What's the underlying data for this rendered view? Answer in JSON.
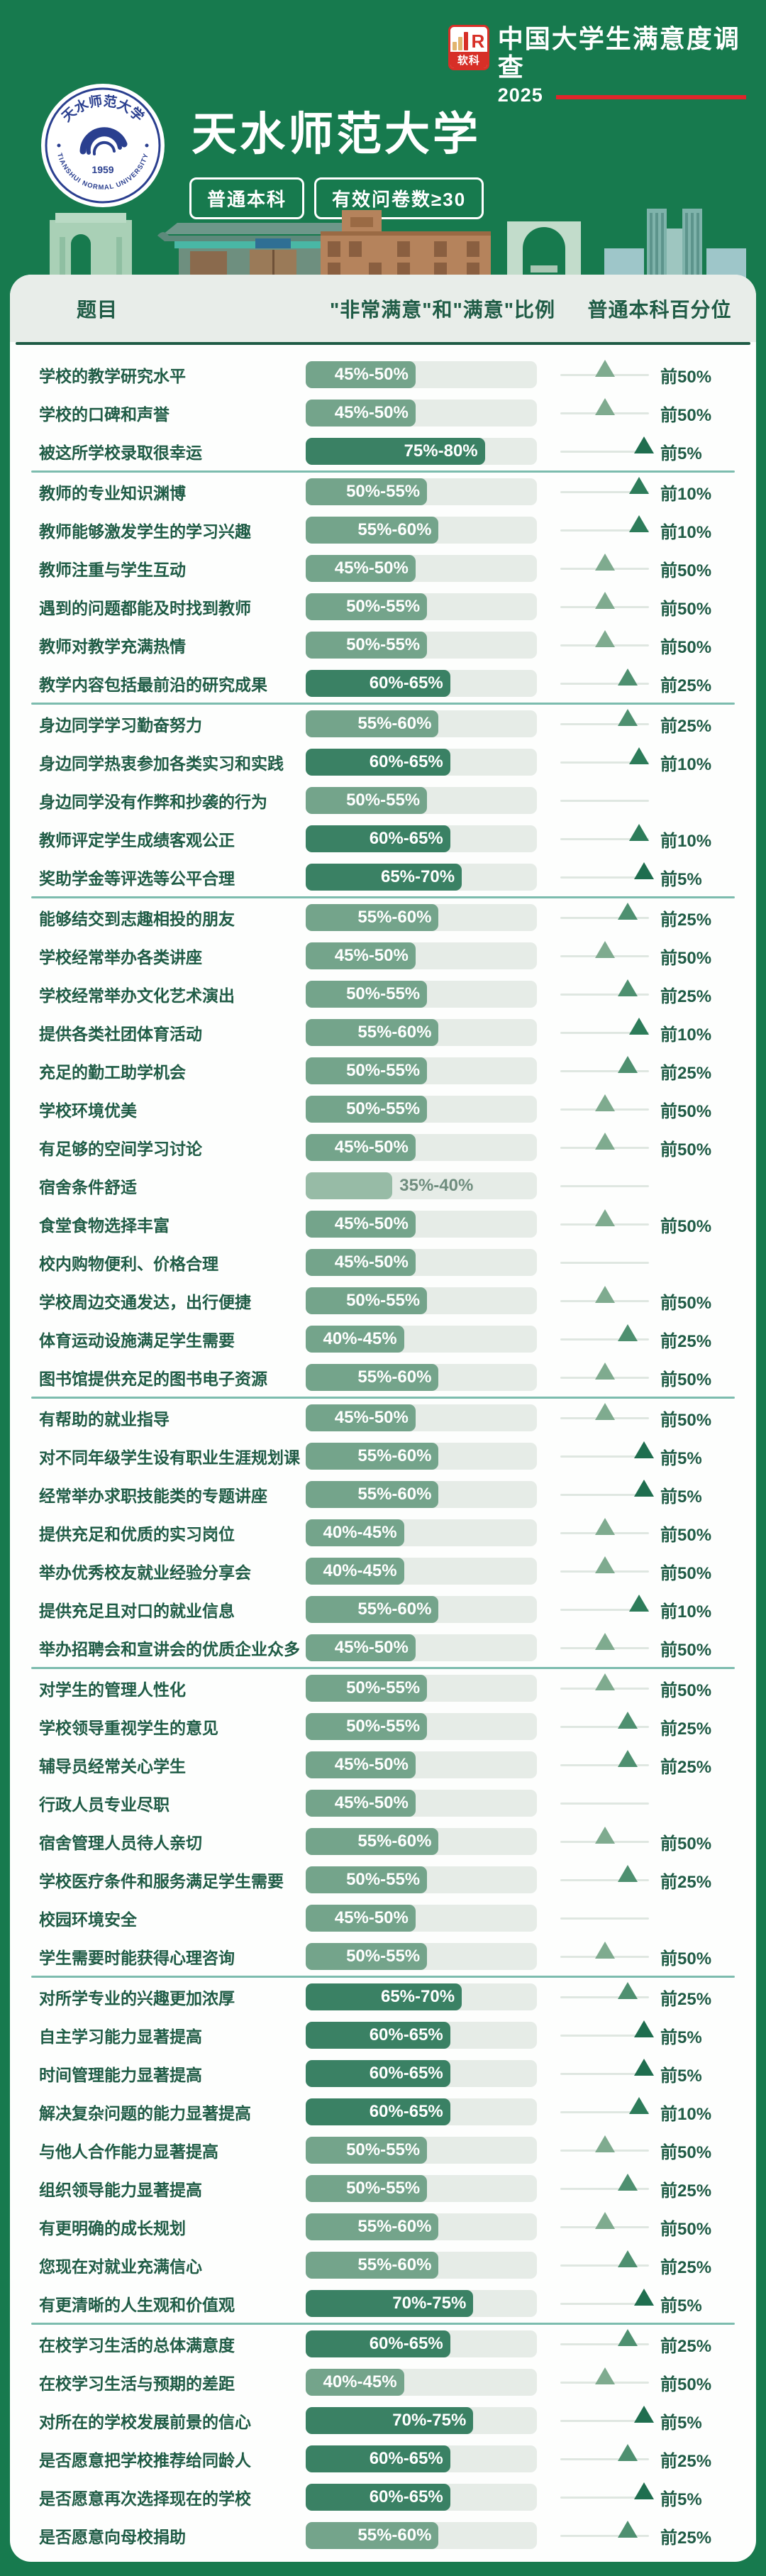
{
  "brand": {
    "logo_text": "软科",
    "survey_title": "中国大学生满意度调查",
    "survey_year": "2025"
  },
  "university": {
    "name": "天水师范大学",
    "seal_cn": "天水师范大学",
    "seal_en": "TIANSHUI NORMAL UNIVERSITY",
    "seal_year": "1959"
  },
  "badges": [
    {
      "label": "普通本科"
    },
    {
      "label": "有效问卷数≥30"
    }
  ],
  "table_header": {
    "question": "题目",
    "ratio": "\"非常满意\"和\"满意\"比例",
    "percentile": "普通本科百分位"
  },
  "percentile_prefix": "前",
  "colors": {
    "page_green": "#177a4e",
    "brand_red": "#d72f27",
    "dark_green_text": "#205c46",
    "bar_track": "#e6ece7",
    "bar_medium": "#74a48b",
    "bar_dark": "#3a8164",
    "bar_light": "#97bba6",
    "section_divider": "#7cbcae",
    "triangle_50": "#7fab8f",
    "triangle_25": "#4e9070",
    "triangle_10": "#2d7c5a",
    "triangle_5": "#1f6e4f"
  },
  "chart_data": {
    "type": "bar",
    "title": "天水师范大学 中国大学生满意度调查 2025",
    "xlabel": "\"非常满意\"和\"满意\"比例",
    "ylabel": "题目",
    "xlim": [
      0,
      100
    ],
    "sections": [
      {
        "rows": [
          {
            "label": "学校的教学研究水平",
            "range": "45%-50%",
            "low": 45,
            "high": 50,
            "pct_label": "前50%",
            "pct": 50
          },
          {
            "label": "学校的口碑和声誉",
            "range": "45%-50%",
            "low": 45,
            "high": 50,
            "pct_label": "前50%",
            "pct": 50
          },
          {
            "label": "被这所学校录取很幸运",
            "range": "75%-80%",
            "low": 75,
            "high": 80,
            "pct_label": "前5%",
            "pct": 5
          }
        ]
      },
      {
        "rows": [
          {
            "label": "教师的专业知识渊博",
            "range": "50%-55%",
            "low": 50,
            "high": 55,
            "pct_label": "前10%",
            "pct": 10
          },
          {
            "label": "教师能够激发学生的学习兴趣",
            "range": "55%-60%",
            "low": 55,
            "high": 60,
            "pct_label": "前10%",
            "pct": 10
          },
          {
            "label": "教师注重与学生互动",
            "range": "45%-50%",
            "low": 45,
            "high": 50,
            "pct_label": "前50%",
            "pct": 50
          },
          {
            "label": "遇到的问题都能及时找到教师",
            "range": "50%-55%",
            "low": 50,
            "high": 55,
            "pct_label": "前50%",
            "pct": 50
          },
          {
            "label": "教师对教学充满热情",
            "range": "50%-55%",
            "low": 50,
            "high": 55,
            "pct_label": "前50%",
            "pct": 50
          },
          {
            "label": "教学内容包括最前沿的研究成果",
            "range": "60%-65%",
            "low": 60,
            "high": 65,
            "pct_label": "前25%",
            "pct": 25
          }
        ]
      },
      {
        "rows": [
          {
            "label": "身边同学学习勤奋努力",
            "range": "55%-60%",
            "low": 55,
            "high": 60,
            "pct_label": "前25%",
            "pct": 25
          },
          {
            "label": "身边同学热衷参加各类实习和实践",
            "range": "60%-65%",
            "low": 60,
            "high": 65,
            "pct_label": "前10%",
            "pct": 10
          },
          {
            "label": "身边同学没有作弊和抄袭的行为",
            "range": "50%-55%",
            "low": 50,
            "high": 55,
            "pct_label": "",
            "pct": null
          },
          {
            "label": "教师评定学生成绩客观公正",
            "range": "60%-65%",
            "low": 60,
            "high": 65,
            "pct_label": "前10%",
            "pct": 10
          },
          {
            "label": "奖助学金等评选等公平合理",
            "range": "65%-70%",
            "low": 65,
            "high": 70,
            "pct_label": "前5%",
            "pct": 5
          }
        ]
      },
      {
        "rows": [
          {
            "label": "能够结交到志趣相投的朋友",
            "range": "55%-60%",
            "low": 55,
            "high": 60,
            "pct_label": "前25%",
            "pct": 25
          },
          {
            "label": "学校经常举办各类讲座",
            "range": "45%-50%",
            "low": 45,
            "high": 50,
            "pct_label": "前50%",
            "pct": 50
          },
          {
            "label": "学校经常举办文化艺术演出",
            "range": "50%-55%",
            "low": 50,
            "high": 55,
            "pct_label": "前25%",
            "pct": 25
          },
          {
            "label": "提供各类社团体育活动",
            "range": "55%-60%",
            "low": 55,
            "high": 60,
            "pct_label": "前10%",
            "pct": 10
          },
          {
            "label": "充足的勤工助学机会",
            "range": "50%-55%",
            "low": 50,
            "high": 55,
            "pct_label": "前25%",
            "pct": 25
          },
          {
            "label": "学校环境优美",
            "range": "50%-55%",
            "low": 50,
            "high": 55,
            "pct_label": "前50%",
            "pct": 50
          },
          {
            "label": "有足够的空间学习讨论",
            "range": "45%-50%",
            "low": 45,
            "high": 50,
            "pct_label": "前50%",
            "pct": 50
          },
          {
            "label": "宿舍条件舒适",
            "range": "35%-40%",
            "low": 35,
            "high": 40,
            "pct_label": "",
            "pct": null
          },
          {
            "label": "食堂食物选择丰富",
            "range": "45%-50%",
            "low": 45,
            "high": 50,
            "pct_label": "前50%",
            "pct": 50
          },
          {
            "label": "校内购物便利、价格合理",
            "range": "45%-50%",
            "low": 45,
            "high": 50,
            "pct_label": "",
            "pct": null
          },
          {
            "label": "学校周边交通发达，出行便捷",
            "range": "50%-55%",
            "low": 50,
            "high": 55,
            "pct_label": "前50%",
            "pct": 50
          },
          {
            "label": "体育运动设施满足学生需要",
            "range": "40%-45%",
            "low": 40,
            "high": 45,
            "pct_label": "前25%",
            "pct": 25
          },
          {
            "label": "图书馆提供充足的图书电子资源",
            "range": "55%-60%",
            "low": 55,
            "high": 60,
            "pct_label": "前50%",
            "pct": 50
          }
        ]
      },
      {
        "rows": [
          {
            "label": "有帮助的就业指导",
            "range": "45%-50%",
            "low": 45,
            "high": 50,
            "pct_label": "前50%",
            "pct": 50
          },
          {
            "label": "对不同年级学生设有职业生涯规划课",
            "range": "55%-60%",
            "low": 55,
            "high": 60,
            "pct_label": "前5%",
            "pct": 5
          },
          {
            "label": "经常举办求职技能类的专题讲座",
            "range": "55%-60%",
            "low": 55,
            "high": 60,
            "pct_label": "前5%",
            "pct": 5
          },
          {
            "label": "提供充足和优质的实习岗位",
            "range": "40%-45%",
            "low": 40,
            "high": 45,
            "pct_label": "前50%",
            "pct": 50
          },
          {
            "label": "举办优秀校友就业经验分享会",
            "range": "40%-45%",
            "low": 40,
            "high": 45,
            "pct_label": "前50%",
            "pct": 50
          },
          {
            "label": "提供充足且对口的就业信息",
            "range": "55%-60%",
            "low": 55,
            "high": 60,
            "pct_label": "前10%",
            "pct": 10
          },
          {
            "label": "举办招聘会和宣讲会的优质企业众多",
            "range": "45%-50%",
            "low": 45,
            "high": 50,
            "pct_label": "前50%",
            "pct": 50
          }
        ]
      },
      {
        "rows": [
          {
            "label": "对学生的管理人性化",
            "range": "50%-55%",
            "low": 50,
            "high": 55,
            "pct_label": "前50%",
            "pct": 50
          },
          {
            "label": "学校领导重视学生的意见",
            "range": "50%-55%",
            "low": 50,
            "high": 55,
            "pct_label": "前25%",
            "pct": 25
          },
          {
            "label": "辅导员经常关心学生",
            "range": "45%-50%",
            "low": 45,
            "high": 50,
            "pct_label": "前25%",
            "pct": 25
          },
          {
            "label": "行政人员专业尽职",
            "range": "45%-50%",
            "low": 45,
            "high": 50,
            "pct_label": "",
            "pct": null
          },
          {
            "label": "宿舍管理人员待人亲切",
            "range": "55%-60%",
            "low": 55,
            "high": 60,
            "pct_label": "前50%",
            "pct": 50
          },
          {
            "label": "学校医疗条件和服务满足学生需要",
            "range": "50%-55%",
            "low": 50,
            "high": 55,
            "pct_label": "前25%",
            "pct": 25
          },
          {
            "label": "校园环境安全",
            "range": "45%-50%",
            "low": 45,
            "high": 50,
            "pct_label": "",
            "pct": null
          },
          {
            "label": "学生需要时能获得心理咨询",
            "range": "50%-55%",
            "low": 50,
            "high": 55,
            "pct_label": "前50%",
            "pct": 50
          }
        ]
      },
      {
        "rows": [
          {
            "label": "对所学专业的兴趣更加浓厚",
            "range": "65%-70%",
            "low": 65,
            "high": 70,
            "pct_label": "前25%",
            "pct": 25
          },
          {
            "label": "自主学习能力显著提高",
            "range": "60%-65%",
            "low": 60,
            "high": 65,
            "pct_label": "前5%",
            "pct": 5
          },
          {
            "label": "时间管理能力显著提高",
            "range": "60%-65%",
            "low": 60,
            "high": 65,
            "pct_label": "前5%",
            "pct": 5
          },
          {
            "label": "解决复杂问题的能力显著提高",
            "range": "60%-65%",
            "low": 60,
            "high": 65,
            "pct_label": "前10%",
            "pct": 10
          },
          {
            "label": "与他人合作能力显著提高",
            "range": "50%-55%",
            "low": 50,
            "high": 55,
            "pct_label": "前50%",
            "pct": 50
          },
          {
            "label": "组织领导能力显著提高",
            "range": "50%-55%",
            "low": 50,
            "high": 55,
            "pct_label": "前25%",
            "pct": 25
          },
          {
            "label": "有更明确的成长规划",
            "range": "55%-60%",
            "low": 55,
            "high": 60,
            "pct_label": "前50%",
            "pct": 50
          },
          {
            "label": "您现在对就业充满信心",
            "range": "55%-60%",
            "low": 55,
            "high": 60,
            "pct_label": "前25%",
            "pct": 25
          },
          {
            "label": "有更清晰的人生观和价值观",
            "range": "70%-75%",
            "low": 70,
            "high": 75,
            "pct_label": "前5%",
            "pct": 5
          }
        ]
      },
      {
        "rows": [
          {
            "label": "在校学习生活的总体满意度",
            "range": "60%-65%",
            "low": 60,
            "high": 65,
            "pct_label": "前25%",
            "pct": 25
          },
          {
            "label": "在校学习生活与预期的差距",
            "range": "40%-45%",
            "low": 40,
            "high": 45,
            "pct_label": "前50%",
            "pct": 50
          },
          {
            "label": "对所在的学校发展前景的信心",
            "range": "70%-75%",
            "low": 70,
            "high": 75,
            "pct_label": "前5%",
            "pct": 5
          },
          {
            "label": "是否愿意把学校推荐给同龄人",
            "range": "60%-65%",
            "low": 60,
            "high": 65,
            "pct_label": "前25%",
            "pct": 25
          },
          {
            "label": "是否愿意再次选择现在的学校",
            "range": "60%-65%",
            "low": 60,
            "high": 65,
            "pct_label": "前5%",
            "pct": 5
          },
          {
            "label": "是否愿意向母校捐助",
            "range": "55%-60%",
            "low": 55,
            "high": 60,
            "pct_label": "前25%",
            "pct": 25
          }
        ]
      }
    ]
  }
}
